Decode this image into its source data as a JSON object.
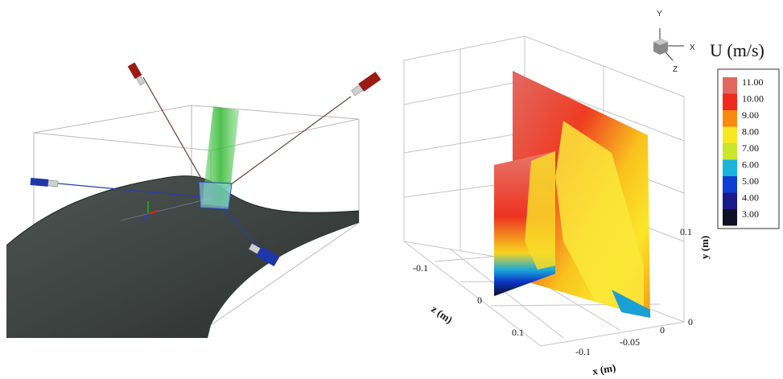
{
  "left_panel": {
    "description_icons": [
      "camera-icon",
      "laser-sheet-icon",
      "axis-triad-icon"
    ]
  },
  "right_panel": {
    "colorbar": {
      "title": "U (m/s)",
      "ticks": [
        "11.00",
        "10.00",
        "9.00",
        "8.00",
        "7.00",
        "6.00",
        "5.00",
        "4.00",
        "3.00"
      ],
      "colors": [
        "#e2675c",
        "#ee2a1c",
        "#f98a10",
        "#f8e620",
        "#c9e52c",
        "#19b3dc",
        "#0c3fd2",
        "#1a1a8a",
        "#101025"
      ]
    },
    "orientation": {
      "y": "Y",
      "x": "X",
      "z": "Z"
    },
    "axes": {
      "z_label": "z (m)",
      "x_label": "x (m)",
      "y_label": "y (m)",
      "z_ticks": [
        "-0.1",
        "0",
        "0.1"
      ],
      "x_ticks": [
        "-0.1",
        "-0.05",
        "0"
      ],
      "y_ticks": [
        "0",
        "0.1"
      ]
    }
  }
}
